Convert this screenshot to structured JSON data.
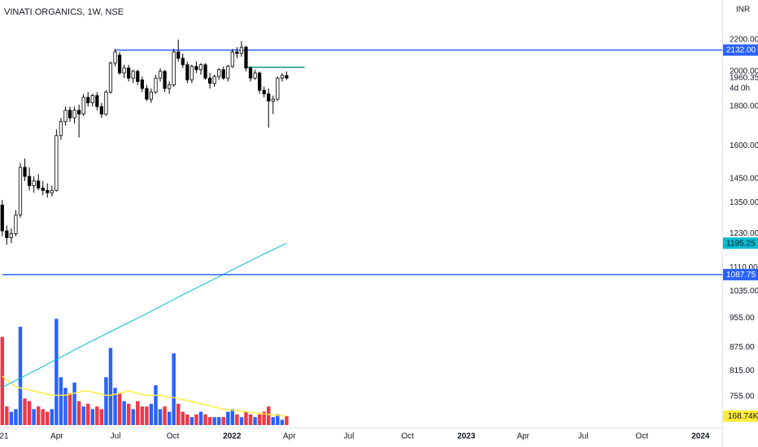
{
  "chart_data": {
    "type": "candlestick",
    "title": "VINATI ORGANICS, 1W, NSE",
    "currency": "INR",
    "countdown": "4d 0h",
    "candle_up_color": "#ffffff",
    "candle_down_color": "#000000",
    "candle_border_color": "#000000",
    "x": [
      0,
      1,
      2,
      3,
      4,
      5,
      6,
      7,
      8,
      9,
      10,
      11,
      12,
      13,
      14,
      15,
      16,
      17,
      18,
      19,
      20,
      21,
      22,
      23,
      24,
      25,
      26,
      27,
      28,
      29,
      30,
      31,
      32,
      33,
      34,
      35,
      36,
      37,
      38,
      39,
      40,
      41,
      42,
      43,
      44,
      45,
      46,
      47,
      48,
      49,
      50,
      51,
      52,
      53,
      54,
      55,
      56,
      57,
      58,
      59,
      60,
      61,
      62,
      63
    ],
    "open": [
      1340,
      1240,
      1215,
      1230,
      1300,
      1500,
      1460,
      1420,
      1440,
      1410,
      1400,
      1390,
      1400,
      1650,
      1720,
      1780,
      1740,
      1780,
      1760,
      1850,
      1820,
      1860,
      1800,
      1760,
      1880,
      2050,
      2100,
      1990,
      2020,
      1960,
      2000,
      1950,
      1900,
      1840,
      1880,
      1960,
      2000,
      1900,
      1920,
      2120,
      2080,
      2040,
      1950,
      2030,
      2010,
      2040,
      1960,
      1930,
      1970,
      2010,
      1960,
      2030,
      2120,
      2110,
      2150,
      2020,
      1960,
      1990,
      1890,
      1870,
      1830,
      1840,
      1960,
      1975
    ],
    "high": [
      1360,
      1260,
      1250,
      1320,
      1520,
      1540,
      1500,
      1460,
      1470,
      1440,
      1430,
      1420,
      1680,
      1740,
      1800,
      1800,
      1800,
      1810,
      1870,
      1880,
      1870,
      1880,
      1820,
      1890,
      2060,
      2140,
      2120,
      2040,
      2040,
      2010,
      2010,
      1970,
      1920,
      1900,
      1980,
      2020,
      2010,
      1940,
      2140,
      2200,
      2110,
      2060,
      2040,
      2060,
      2050,
      2050,
      1990,
      1980,
      2020,
      2030,
      2040,
      2140,
      2150,
      2190,
      2160,
      2030,
      2010,
      2000,
      1910,
      1900,
      1860,
      1970,
      1990,
      2000
    ],
    "low": [
      1220,
      1190,
      1195,
      1220,
      1290,
      1440,
      1400,
      1390,
      1400,
      1380,
      1370,
      1375,
      1395,
      1630,
      1700,
      1720,
      1710,
      1640,
      1750,
      1800,
      1800,
      1780,
      1740,
      1750,
      1870,
      2030,
      1980,
      1960,
      1940,
      1930,
      1920,
      1880,
      1830,
      1820,
      1870,
      1940,
      1880,
      1870,
      1910,
      2060,
      2020,
      1930,
      1930,
      1990,
      1980,
      1950,
      1900,
      1910,
      1950,
      1950,
      1940,
      2020,
      2080,
      2090,
      2000,
      1940,
      1950,
      1870,
      1850,
      1690,
      1760,
      1830,
      1940,
      1950
    ],
    "close": [
      1240,
      1215,
      1230,
      1300,
      1500,
      1460,
      1420,
      1440,
      1410,
      1400,
      1390,
      1400,
      1650,
      1720,
      1780,
      1740,
      1780,
      1760,
      1850,
      1820,
      1860,
      1800,
      1760,
      1880,
      2050,
      2120,
      1990,
      2020,
      1960,
      2000,
      1940,
      1900,
      1840,
      1880,
      1960,
      2000,
      1900,
      1920,
      2120,
      2080,
      2040,
      1950,
      2030,
      2010,
      2040,
      1960,
      1930,
      1970,
      2010,
      1960,
      2030,
      2120,
      2110,
      2150,
      2020,
      1960,
      1990,
      1890,
      1870,
      1830,
      1840,
      1960,
      1975,
      1960.35
    ],
    "volume": {
      "axis": "y2",
      "up_color": "#2962ff",
      "down_color": "#f23645",
      "label_color": "#ffeb3b",
      "last_label": "168.74K",
      "values": [
        1660,
        350,
        250,
        300,
        1850,
        500,
        450,
        300,
        350,
        300,
        250,
        300,
        2000,
        900,
        700,
        600,
        800,
        450,
        350,
        400,
        300,
        350,
        300,
        900,
        1450,
        700,
        600,
        450,
        400,
        300,
        450,
        350,
        350,
        400,
        750,
        300,
        350,
        250,
        1350,
        400,
        250,
        200,
        150,
        200,
        250,
        200,
        150,
        150,
        150,
        150,
        250,
        300,
        200,
        150,
        250,
        200,
        150,
        200,
        250,
        350,
        150,
        200,
        100,
        168.74
      ]
    },
    "volume_ma": {
      "axis": "y2",
      "color": "#ffeb3b",
      "values": [
        920,
        850,
        780,
        720,
        700,
        680,
        660,
        640,
        620,
        600,
        580,
        560,
        560,
        560,
        560,
        580,
        600,
        620,
        640,
        640,
        620,
        600,
        580,
        560,
        560,
        580,
        600,
        620,
        640,
        620,
        600,
        580,
        560,
        560,
        560,
        560,
        540,
        520,
        520,
        500,
        480,
        460,
        440,
        420,
        400,
        380,
        360,
        340,
        320,
        300,
        290,
        280,
        270,
        260,
        250,
        240,
        230,
        220,
        210,
        200,
        190,
        180,
        175,
        170
      ]
    },
    "ma": {
      "color": "#00bcd4",
      "x": [
        0,
        8,
        16,
        24,
        32,
        40,
        48,
        56,
        63
      ],
      "values": [
        776,
        820,
        868,
        917,
        968,
        1024,
        1081,
        1142,
        1195.25
      ]
    },
    "levels": [
      {
        "value": 2132,
        "label": "2132.00",
        "color": "#2962ff",
        "start": 25
      },
      {
        "value": 1087.75,
        "label": "1087.75",
        "color": "#2962ff",
        "start": 0
      },
      {
        "value": 2025,
        "color": "#089981",
        "start": 54,
        "end": 67
      }
    ],
    "xlim": [
      -0.5,
      159.5
    ],
    "xticks": [
      {
        "value": 0.4,
        "label": "21"
      },
      {
        "value": 12.1,
        "label": "Apr"
      },
      {
        "value": 25.1,
        "label": "Jul"
      },
      {
        "value": 37.8,
        "label": "Oct"
      },
      {
        "value": 50.9,
        "label": "2022"
      },
      {
        "value": 63.6,
        "label": "Apr"
      },
      {
        "value": 76.8,
        "label": "Jul"
      },
      {
        "value": 89.8,
        "label": "Oct"
      },
      {
        "value": 102.8,
        "label": "2023"
      },
      {
        "value": 115.4,
        "label": "Apr"
      },
      {
        "value": 128.7,
        "label": "Jul"
      },
      {
        "value": 141.7,
        "label": "Oct"
      },
      {
        "value": 154.7,
        "label": "2024"
      }
    ],
    "ylim": [
      693,
      2477
    ],
    "log_scale": true,
    "grid": false,
    "yticks": [
      {
        "value": 2200,
        "label": "2200.00"
      },
      {
        "value": 2000,
        "label": "2000.00"
      },
      {
        "value": 1800,
        "label": "1800.00"
      },
      {
        "value": 1600,
        "label": "1600.00"
      },
      {
        "value": 1450,
        "label": "1450.00"
      },
      {
        "value": 1350,
        "label": "1350.00"
      },
      {
        "value": 1230,
        "label": "1230.00"
      },
      {
        "value": 1110,
        "label": "1110.00"
      },
      {
        "value": 1035,
        "label": "1035.00"
      },
      {
        "value": 955,
        "label": "955.00"
      },
      {
        "value": 875,
        "label": "875.00"
      },
      {
        "value": 815,
        "label": "815.00"
      },
      {
        "value": 755,
        "label": "755.00"
      }
    ],
    "y2lim": [
      0,
      8000
    ]
  }
}
